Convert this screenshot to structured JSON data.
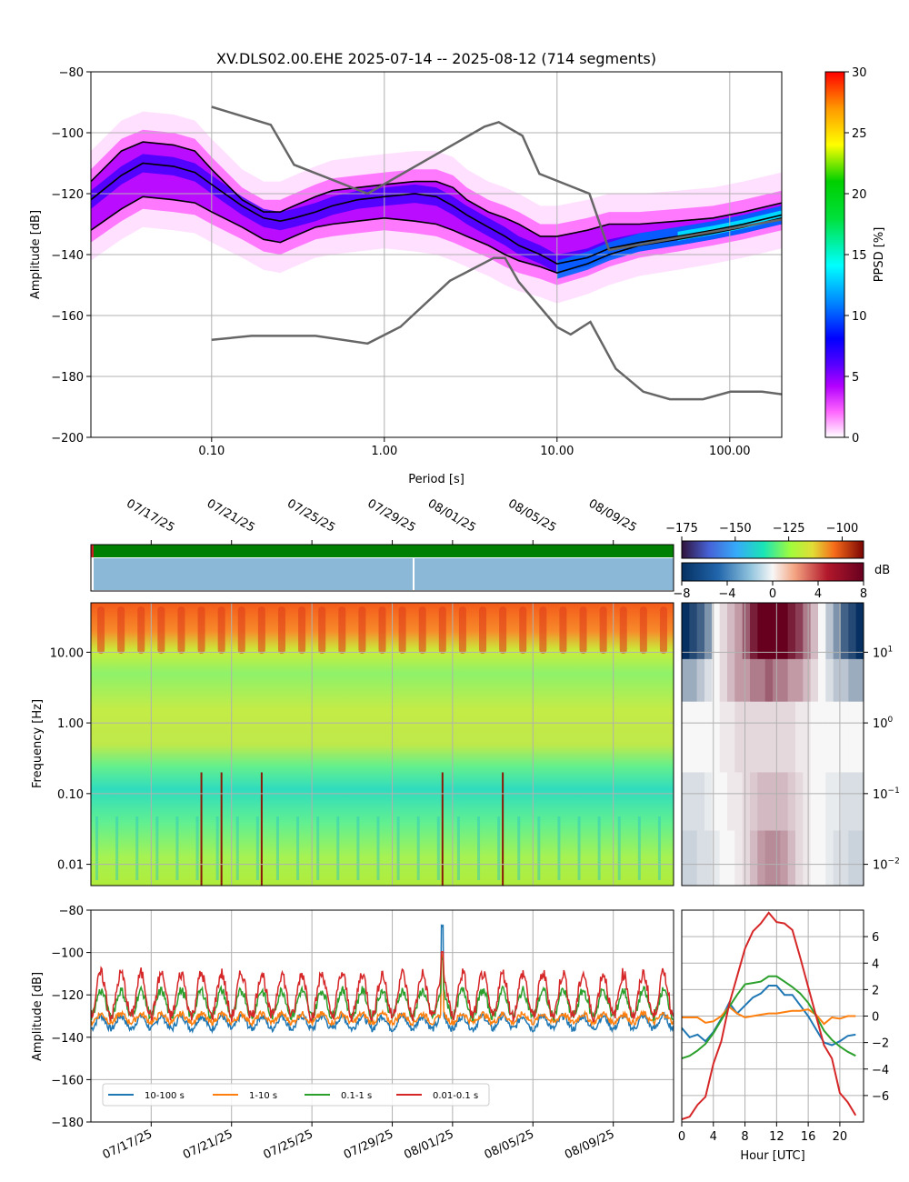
{
  "figure": {
    "title": "XV.DLS02.00.EHE   2025-07-14 -- 2025-08-12  (714 segments)",
    "unit_db": "dB"
  },
  "chart_data": [
    {
      "type": "heatmap",
      "name_role": "PPSD",
      "title": "XV.DLS02.00.EHE   2025-07-14 -- 2025-08-12  (714 segments)",
      "xlabel": "Period [s]",
      "ylabel": "Amplitude [dB]",
      "x_scale": "log",
      "xlim": [
        0.02,
        200
      ],
      "ylim": [
        -200,
        -80
      ],
      "x_ticks": [
        "0.10",
        "1.00",
        "10.00",
        "100.00"
      ],
      "x_tick_values": [
        0.1,
        1,
        10,
        100
      ],
      "y_ticks": [
        -80,
        -100,
        -120,
        -140,
        -160,
        -180,
        -200
      ],
      "grid": true,
      "colorbar": {
        "label": "PPSD [%]",
        "min": 0,
        "max": 30,
        "ticks": [
          0,
          5,
          10,
          15,
          20,
          25,
          30
        ]
      },
      "percentile_curves": [
        {
          "role": "upper",
          "x": [
            0.02,
            0.03,
            0.04,
            0.06,
            0.08,
            0.1,
            0.15,
            0.2,
            0.25,
            0.3,
            0.4,
            0.5,
            0.7,
            1.0,
            1.5,
            2.0,
            2.5,
            3,
            4,
            5,
            6,
            8,
            10,
            15,
            20,
            30,
            50,
            80,
            120,
            200
          ],
          "y": [
            -116,
            -106,
            -103,
            -104,
            -106,
            -112,
            -122,
            -126,
            -126,
            -124,
            -121,
            -119,
            -118,
            -117,
            -116,
            -116,
            -118,
            -122,
            -126,
            -128,
            -130,
            -134,
            -134,
            -132,
            -130,
            -130,
            -129,
            -128,
            -126,
            -123
          ]
        },
        {
          "role": "median",
          "x": [
            0.02,
            0.03,
            0.04,
            0.06,
            0.08,
            0.1,
            0.15,
            0.2,
            0.25,
            0.3,
            0.4,
            0.5,
            0.7,
            1.0,
            1.5,
            2.0,
            2.5,
            3,
            4,
            5,
            6,
            8,
            10,
            15,
            20,
            30,
            50,
            80,
            120,
            200
          ],
          "y": [
            -122,
            -114,
            -110,
            -111,
            -113,
            -117,
            -124,
            -128,
            -129,
            -128,
            -126,
            -124,
            -122,
            -121,
            -120,
            -121,
            -124,
            -127,
            -131,
            -134,
            -137,
            -140,
            -143,
            -141,
            -138,
            -136,
            -134,
            -132,
            -130,
            -127
          ]
        },
        {
          "role": "lower",
          "x": [
            0.02,
            0.03,
            0.04,
            0.06,
            0.08,
            0.1,
            0.15,
            0.2,
            0.25,
            0.3,
            0.4,
            0.5,
            0.7,
            1.0,
            1.5,
            2.0,
            2.5,
            3,
            4,
            5,
            6,
            8,
            10,
            15,
            20,
            30,
            50,
            80,
            120,
            200
          ],
          "y": [
            -132,
            -125,
            -121,
            -122,
            -123,
            -126,
            -131,
            -135,
            -136,
            -134,
            -131,
            -130,
            -129,
            -128,
            -129,
            -130,
            -132,
            -134,
            -137,
            -140,
            -142,
            -144,
            -146,
            -143,
            -140,
            -137,
            -135,
            -133,
            -131,
            -128
          ]
        }
      ],
      "noise_models": [
        {
          "role": "high-noise-model",
          "x": [
            0.1,
            0.22,
            0.3,
            0.8,
            3.8,
            4.6,
            6.3,
            7.9,
            15.4,
            20,
            354,
            10000
          ],
          "y": [
            -91.5,
            -97.4,
            -110.5,
            -120,
            -98,
            -96.5,
            -101,
            -113.5,
            -120,
            -138.5,
            -126,
            -80
          ]
        },
        {
          "role": "low-noise-model",
          "x": [
            0.1,
            0.17,
            0.4,
            0.8,
            1.24,
            2.4,
            4.3,
            5,
            6,
            10,
            12,
            15.6,
            21.9,
            31.6,
            45,
            70,
            101,
            154,
            328,
            600,
            10000
          ],
          "y": [
            -168,
            -166.7,
            -166.7,
            -169.2,
            -163.7,
            -148.6,
            -141.1,
            -141.1,
            -149,
            -163.8,
            -166.2,
            -162.1,
            -177.5,
            -185,
            -187.5,
            -187.5,
            -185,
            -185,
            -187.5,
            -184.4,
            -151.5
          ]
        }
      ]
    },
    {
      "type": "heatmap",
      "name_role": "spectrogram",
      "ylabel": "Frequency [Hz]",
      "y_scale": "log",
      "ylim": [
        0.005,
        50
      ],
      "y_ticks": [
        "0.01",
        "0.10",
        "1.00",
        "10.00"
      ],
      "y_tick_values": [
        0.01,
        0.1,
        1,
        10
      ],
      "x_dates": [
        "07/17/25",
        "07/21/25",
        "07/25/25",
        "07/29/25",
        "08/01/25",
        "08/05/25",
        "08/09/25"
      ],
      "xlim": [
        "2025-07-14",
        "2025-08-12"
      ],
      "colorbar": {
        "min": -175,
        "max": -90,
        "ticks": [
          -175,
          -150,
          -125,
          -100
        ]
      },
      "spikes": [
        "07/19/25",
        "07/20/25",
        "07/22/25",
        "07/31/25",
        "08/03/25"
      ],
      "grid": true
    },
    {
      "type": "heatmap",
      "name_role": "hour-anomaly",
      "y_scale": "log",
      "y_ticks": [
        "10^-2",
        "10^-1",
        "10^0",
        "10^1"
      ],
      "colorbar": {
        "label": "dB",
        "min": -8,
        "max": 8,
        "ticks": [
          -8,
          -4,
          0,
          4,
          8
        ]
      }
    },
    {
      "type": "line",
      "name_role": "band-time-series",
      "ylabel": "Amplitude [dB]",
      "ylim": [
        -180,
        -80
      ],
      "y_ticks": [
        -80,
        -100,
        -120,
        -140,
        -160,
        -180
      ],
      "x_dates": [
        "07/17/25",
        "07/21/25",
        "07/25/25",
        "07/29/25",
        "08/01/25",
        "08/05/25",
        "08/09/25"
      ],
      "xlim": [
        "2025-07-14",
        "2025-08-12"
      ],
      "legend_position": "lower-left",
      "grid": true,
      "series": [
        {
          "name": "10-100 s",
          "color": "#1f77b4",
          "base": -133,
          "amp": 3,
          "peak_date": "2025-07-31",
          "peak_value": -87
        },
        {
          "name": "1-10 s",
          "color": "#ff7f0e",
          "base": -131,
          "amp": 2,
          "peak_date": "2025-07-31",
          "peak_value": -102
        },
        {
          "name": "0.1-1 s",
          "color": "#2ca02c",
          "base": -124,
          "amp": 6,
          "peak_date": "2025-07-31",
          "peak_value": -103
        },
        {
          "name": "0.01-0.1 s",
          "color": "#d62728",
          "base": -120,
          "amp": 10,
          "peak_date": "2025-07-31",
          "peak_value": -100
        }
      ]
    },
    {
      "type": "line",
      "name_role": "hourly-deviation",
      "xlabel": "Hour [UTC]",
      "x_ticks": [
        0,
        4,
        8,
        12,
        16,
        20
      ],
      "xlim": [
        0,
        23
      ],
      "ylim": [
        -8,
        8
      ],
      "y_ticks": [
        6,
        4,
        2,
        0,
        -2,
        -4,
        -6
      ],
      "grid": true,
      "x": [
        0,
        1,
        2,
        3,
        4,
        5,
        6,
        7,
        8,
        9,
        10,
        11,
        12,
        13,
        14,
        15,
        16,
        17,
        18,
        19,
        20,
        21,
        22
      ],
      "series": [
        {
          "color": "#1f77b4",
          "values": [
            -0.9,
            -1.6,
            -1.4,
            -1.9,
            -1.2,
            -0.2,
            1.0,
            0.2,
            0.8,
            1.4,
            1.7,
            2.3,
            2.3,
            1.6,
            1.6,
            0.8,
            0.0,
            -1.0,
            -2.0,
            -2.2,
            -1.9,
            -1.5,
            -1.4
          ]
        },
        {
          "color": "#ff7f0e",
          "values": [
            -0.1,
            -0.1,
            -0.1,
            -0.5,
            -0.4,
            0.0,
            0.7,
            0.2,
            -0.1,
            0.0,
            0.1,
            0.2,
            0.2,
            0.3,
            0.4,
            0.4,
            0.5,
            0.1,
            -0.6,
            -0.1,
            -0.2,
            0.0,
            0.0
          ]
        },
        {
          "color": "#2ca02c",
          "values": [
            -3.2,
            -3.0,
            -2.6,
            -2.1,
            -1.3,
            -0.3,
            0.7,
            1.6,
            2.4,
            2.5,
            2.6,
            3.0,
            3.0,
            2.6,
            2.2,
            1.7,
            1.0,
            0.0,
            -1.1,
            -1.8,
            -2.3,
            -2.7,
            -3.0
          ]
        },
        {
          "color": "#d62728",
          "values": [
            -7.8,
            -7.6,
            -6.7,
            -6.1,
            -3.6,
            -1.9,
            0.9,
            3.0,
            5.1,
            6.4,
            7.0,
            7.8,
            7.1,
            7.0,
            6.5,
            4.4,
            2.2,
            0.0,
            -2.2,
            -3.2,
            -5.8,
            -6.5,
            -7.5
          ]
        }
      ]
    }
  ]
}
